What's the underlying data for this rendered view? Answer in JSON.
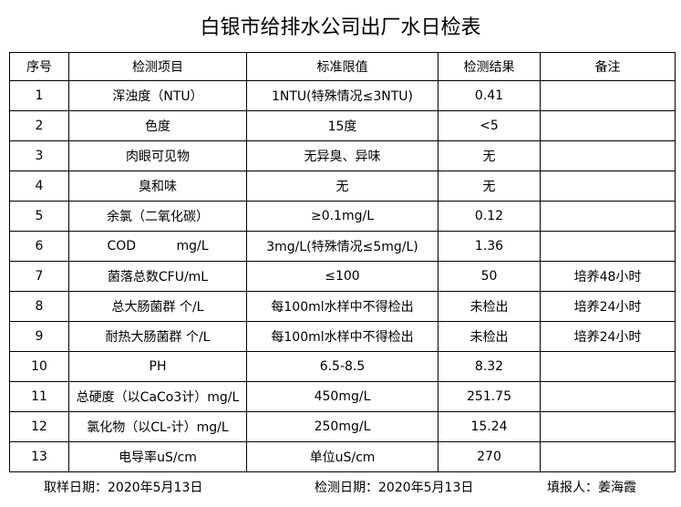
{
  "header": {
    "title": "白银市给排水公司出厂水日检表"
  },
  "table": {
    "columns": [
      "序号",
      "检测项目",
      "标准限值",
      "检测结果",
      "备注"
    ],
    "rows": [
      [
        "1",
        "浑浊度（NTU）",
        "1NTU(特殊情况≤3NTU)",
        "0.41"
      ],
      [
        "2",
        "色度",
        "15度",
        "<5"
      ],
      [
        "3",
        "肉眼可见物",
        "无异臭、异味",
        "无"
      ],
      [
        "4",
        "臭和味",
        "无",
        "无"
      ],
      [
        "5",
        "余氯（二氧化碳）",
        "≥0.1mg/L",
        "0.12"
      ],
      [
        "6",
        "COD          mg/L",
        "3mg/L(特殊情况≤5mg/L)",
        "1.36"
      ],
      [
        "7",
        "菌落总数CFU/mL",
        "≤100",
        "50",
        "培养48小时"
      ],
      [
        "8",
        "总大肠菌群 个/L",
        "每100ml水样中不得检出",
        "未检出",
        "培养24小时"
      ],
      [
        "9",
        "耐热大肠菌群 个/L",
        "每100ml水样中不得检出",
        "未检出",
        "培养24小时"
      ],
      [
        "10",
        "PH",
        "6.5-8.5",
        "8.32"
      ],
      [
        "11",
        "总硬度（以CaCo3计）mg/L",
        "450mg/L",
        "251.75"
      ],
      [
        "12",
        "氯化物（以CL-计）mg/L",
        "250mg/L",
        "15.24"
      ],
      [
        "13",
        "电导率uS/cm",
        "单位uS/cm",
        "270"
      ]
    ]
  },
  "footer": {
    "sampling_date": "取样日期：2020年5月13日",
    "test_date": "检测日期：2020年5月13日",
    "reporter": "填报人：姜海霞"
  }
}
